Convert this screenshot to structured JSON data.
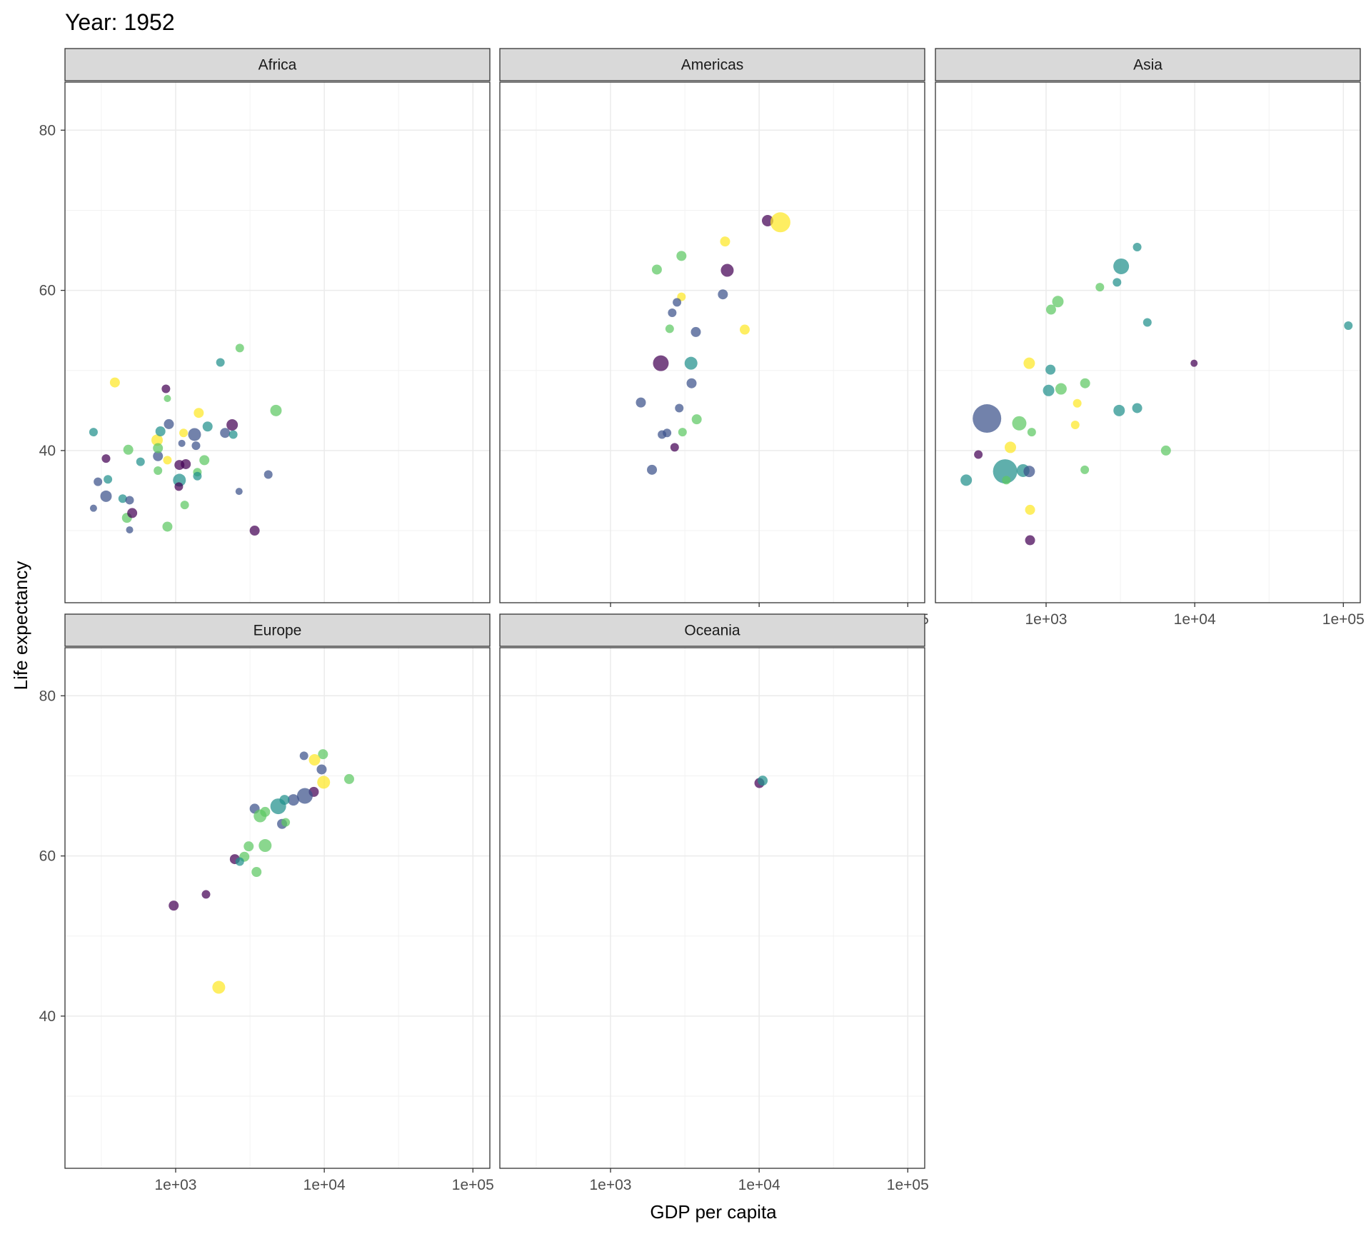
{
  "chart_data": {
    "type": "scatter",
    "title": "Year: 1952",
    "xlabel": "GDP per capita",
    "ylabel": "Life expectancy",
    "x_scale": "log10",
    "xlim": [
      180,
      130000
    ],
    "ylim": [
      21,
      86
    ],
    "x_ticks": [
      {
        "value": 1000,
        "label": "1e+03"
      },
      {
        "value": 10000,
        "label": "1e+04"
      },
      {
        "value": 100000,
        "label": "1e+05"
      }
    ],
    "x_minor_ticks": [
      316.2,
      3162.3,
      31622.8
    ],
    "y_ticks": [
      {
        "value": 40,
        "label": "40"
      },
      {
        "value": 60,
        "label": "60"
      },
      {
        "value": 80,
        "label": "80"
      }
    ],
    "y_minor_ticks": [
      30,
      50,
      70
    ],
    "grid": true,
    "legend": "none",
    "palette": [
      "#440154",
      "#3b528b",
      "#21908c",
      "#5dc863",
      "#fde725"
    ],
    "facets": [
      {
        "name": "Africa",
        "points": [
          [
            280,
            42.3,
            6,
            2
          ],
          [
            340,
            39.0,
            6,
            0
          ],
          [
            300,
            36.1,
            6,
            1
          ],
          [
            350,
            36.4,
            6,
            2
          ],
          [
            340,
            34.3,
            8,
            1
          ],
          [
            280,
            32.8,
            5,
            1
          ],
          [
            440,
            34.0,
            6,
            2
          ],
          [
            490,
            33.8,
            6,
            1
          ],
          [
            470,
            31.6,
            7,
            3
          ],
          [
            490,
            30.1,
            5,
            1
          ],
          [
            510,
            32.2,
            7,
            0
          ],
          [
            390,
            48.5,
            7,
            4
          ],
          [
            480,
            40.1,
            7,
            3
          ],
          [
            580,
            38.6,
            6,
            2
          ],
          [
            750,
            41.3,
            8,
            4
          ],
          [
            760,
            39.3,
            7,
            1
          ],
          [
            790,
            42.4,
            7,
            2
          ],
          [
            860,
            47.7,
            6,
            0
          ],
          [
            880,
            46.5,
            5,
            3
          ],
          [
            900,
            43.3,
            7,
            1
          ],
          [
            880,
            38.8,
            6,
            4
          ],
          [
            760,
            40.3,
            7,
            3
          ],
          [
            760,
            37.5,
            6,
            3
          ],
          [
            880,
            30.5,
            7,
            3
          ],
          [
            1060,
            36.3,
            9,
            2
          ],
          [
            1060,
            38.2,
            7,
            0
          ],
          [
            1100,
            40.9,
            5,
            1
          ],
          [
            1130,
            42.2,
            6,
            4
          ],
          [
            1170,
            38.3,
            7,
            0
          ],
          [
            1150,
            33.2,
            6,
            3
          ],
          [
            1340,
            42.0,
            9,
            1
          ],
          [
            1370,
            40.6,
            6,
            1
          ],
          [
            1400,
            37.3,
            6,
            3
          ],
          [
            1400,
            36.8,
            6,
            2
          ],
          [
            1430,
            44.7,
            7,
            4
          ],
          [
            1560,
            38.8,
            7,
            3
          ],
          [
            1640,
            43.0,
            7,
            2
          ],
          [
            1050,
            35.5,
            6,
            0
          ],
          [
            2000,
            51.0,
            6,
            2
          ],
          [
            2150,
            42.2,
            7,
            1
          ],
          [
            2400,
            43.2,
            8,
            0
          ],
          [
            2440,
            42.0,
            6,
            2
          ],
          [
            2700,
            52.8,
            6,
            3
          ],
          [
            2670,
            34.9,
            5,
            1
          ],
          [
            3400,
            30.0,
            7,
            0
          ],
          [
            4200,
            37.0,
            6,
            1
          ],
          [
            4730,
            45.0,
            8,
            3
          ]
        ]
      },
      {
        "name": "Americas",
        "points": [
          [
            2050,
            62.6,
            7,
            3
          ],
          [
            3000,
            64.3,
            7,
            3
          ],
          [
            5900,
            66.1,
            7,
            4
          ],
          [
            11400,
            68.7,
            8,
            0
          ],
          [
            13900,
            68.5,
            14,
            4
          ],
          [
            6100,
            62.5,
            9,
            0
          ],
          [
            3000,
            59.2,
            6,
            4
          ],
          [
            2800,
            58.5,
            6,
            1
          ],
          [
            2600,
            57.2,
            6,
            1
          ],
          [
            5700,
            59.5,
            7,
            1
          ],
          [
            2500,
            55.2,
            6,
            3
          ],
          [
            3750,
            54.8,
            7,
            1
          ],
          [
            8000,
            55.1,
            7,
            4
          ],
          [
            2180,
            50.9,
            11,
            0
          ],
          [
            3480,
            50.9,
            9,
            2
          ],
          [
            3510,
            48.4,
            7,
            1
          ],
          [
            1600,
            46.0,
            7,
            1
          ],
          [
            2900,
            45.3,
            6,
            1
          ],
          [
            3800,
            43.9,
            7,
            3
          ],
          [
            3050,
            42.3,
            6,
            3
          ],
          [
            2220,
            42.0,
            6,
            1
          ],
          [
            2400,
            42.2,
            6,
            1
          ],
          [
            2700,
            40.4,
            6,
            0
          ],
          [
            1900,
            37.6,
            7,
            1
          ]
        ]
      },
      {
        "name": "Asia",
        "points": [
          [
            4100,
            65.4,
            6,
            2
          ],
          [
            3200,
            63.0,
            11,
            2
          ],
          [
            3000,
            61.0,
            6,
            2
          ],
          [
            2300,
            60.4,
            6,
            3
          ],
          [
            1200,
            58.6,
            8,
            3
          ],
          [
            1080,
            57.6,
            7,
            3
          ],
          [
            4800,
            56.0,
            6,
            2
          ],
          [
            108000,
            55.6,
            6,
            2
          ],
          [
            9900,
            50.9,
            5,
            0
          ],
          [
            770,
            50.9,
            8,
            4
          ],
          [
            1070,
            50.1,
            7,
            2
          ],
          [
            1830,
            48.4,
            7,
            3
          ],
          [
            1040,
            47.5,
            8,
            2
          ],
          [
            1260,
            47.7,
            8,
            3
          ],
          [
            1620,
            45.9,
            6,
            4
          ],
          [
            3100,
            45.0,
            8,
            2
          ],
          [
            4100,
            45.3,
            7,
            2
          ],
          [
            400,
            44.0,
            20,
            1
          ],
          [
            660,
            43.4,
            10,
            3
          ],
          [
            1570,
            43.2,
            6,
            4
          ],
          [
            800,
            42.3,
            6,
            3
          ],
          [
            575,
            40.4,
            8,
            4
          ],
          [
            6400,
            40.0,
            7,
            3
          ],
          [
            350,
            39.5,
            6,
            0
          ],
          [
            530,
            37.4,
            17,
            2
          ],
          [
            700,
            37.5,
            9,
            2
          ],
          [
            770,
            37.4,
            8,
            1
          ],
          [
            1820,
            37.6,
            6,
            3
          ],
          [
            290,
            36.3,
            8,
            2
          ],
          [
            540,
            36.3,
            6,
            3
          ],
          [
            780,
            32.6,
            7,
            4
          ],
          [
            780,
            28.8,
            7,
            0
          ]
        ]
      },
      {
        "name": "Europe",
        "points": [
          [
            7300,
            72.5,
            6,
            1
          ],
          [
            9800,
            72.7,
            7,
            3
          ],
          [
            8600,
            72.0,
            8,
            4
          ],
          [
            9600,
            70.8,
            7,
            1
          ],
          [
            14700,
            69.6,
            7,
            3
          ],
          [
            9900,
            69.2,
            9,
            4
          ],
          [
            8500,
            68.0,
            7,
            0
          ],
          [
            7400,
            67.5,
            11,
            1
          ],
          [
            6200,
            67.0,
            8,
            1
          ],
          [
            5400,
            67.0,
            7,
            2
          ],
          [
            4900,
            66.2,
            11,
            2
          ],
          [
            3400,
            65.9,
            7,
            1
          ],
          [
            3700,
            65.0,
            9,
            3
          ],
          [
            4000,
            65.5,
            7,
            3
          ],
          [
            5200,
            64.0,
            7,
            1
          ],
          [
            5500,
            64.2,
            6,
            3
          ],
          [
            4000,
            61.3,
            9,
            3
          ],
          [
            3100,
            61.2,
            7,
            3
          ],
          [
            2900,
            59.9,
            7,
            3
          ],
          [
            2500,
            59.6,
            7,
            0
          ],
          [
            2700,
            59.3,
            6,
            2
          ],
          [
            3500,
            58.0,
            7,
            3
          ],
          [
            1600,
            55.2,
            6,
            0
          ],
          [
            970,
            53.8,
            7,
            0
          ],
          [
            1950,
            43.6,
            9,
            4
          ]
        ]
      },
      {
        "name": "Oceania",
        "points": [
          [
            10040,
            69.1,
            7,
            0
          ],
          [
            10560,
            69.4,
            7,
            2
          ]
        ]
      }
    ]
  }
}
